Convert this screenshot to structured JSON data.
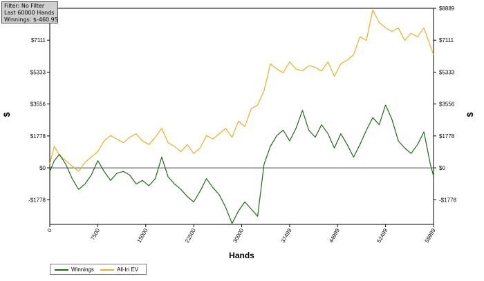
{
  "info_box": {
    "line1": "Filter: No Filter",
    "line2": "Last  60000 Hands",
    "line3": "Winnings: $-460.95"
  },
  "chart_data": {
    "type": "line",
    "xlabel": "Hands",
    "ylabel": "$",
    "xlim": [
      0,
      59999
    ],
    "ylim": [
      -3150,
      8889
    ],
    "x_ticks": [
      0,
      7500,
      15000,
      22500,
      30000,
      37499,
      44999,
      52499,
      59999
    ],
    "y_ticks": [
      -1778,
      0,
      1778,
      3556,
      5333,
      7111,
      8889
    ],
    "y_tick_labels": [
      "-$1778",
      "$0",
      "$1778",
      "$3556",
      "$5333",
      "$7111",
      "$8889"
    ],
    "grid": false,
    "zero_line": true,
    "legend_position": "bottom-left",
    "series": [
      {
        "name": "Winnings",
        "color": "#1a6b12",
        "x": [
          0,
          700,
          1500,
          2500,
          3500,
          4500,
          5500,
          6500,
          7500,
          8500,
          9500,
          10500,
          11500,
          12500,
          13500,
          14500,
          15500,
          16500,
          17500,
          18500,
          19500,
          20500,
          21500,
          22500,
          23500,
          24500,
          25500,
          26500,
          27500,
          28500,
          29500,
          30500,
          31500,
          32500,
          33500,
          34500,
          35500,
          36500,
          37500,
          38500,
          39500,
          40500,
          41500,
          42500,
          43500,
          44500,
          45500,
          46500,
          47500,
          48500,
          49500,
          50500,
          51500,
          52500,
          53500,
          54500,
          55500,
          56500,
          57500,
          58500,
          59500,
          59999
        ],
        "values": [
          -200,
          400,
          750,
          200,
          -600,
          -1200,
          -900,
          -400,
          400,
          -200,
          -700,
          -300,
          -200,
          -400,
          -900,
          -700,
          -1000,
          -600,
          600,
          -500,
          -900,
          -1200,
          -1600,
          -1900,
          -1300,
          -600,
          -1100,
          -1500,
          -2200,
          -3100,
          -2400,
          -1900,
          -2300,
          -2700,
          200,
          1200,
          1800,
          2100,
          1500,
          2200,
          3200,
          2100,
          1700,
          2400,
          1900,
          1100,
          1900,
          1300,
          600,
          1300,
          2100,
          2800,
          2400,
          3500,
          2700,
          1500,
          1100,
          800,
          1300,
          2000,
          200,
          -461
        ]
      },
      {
        "name": "All-In EV",
        "color": "#e8b020",
        "x": [
          0,
          700,
          1500,
          2500,
          3500,
          4500,
          5500,
          6500,
          7500,
          8500,
          9500,
          10500,
          11500,
          12500,
          13500,
          14500,
          15500,
          16500,
          17500,
          18500,
          19500,
          20500,
          21500,
          22500,
          23500,
          24500,
          25500,
          26500,
          27500,
          28500,
          29500,
          30500,
          31500,
          32500,
          33500,
          34500,
          35500,
          36500,
          37500,
          38500,
          39500,
          40500,
          41500,
          42500,
          43500,
          44500,
          45500,
          46500,
          47500,
          48500,
          49500,
          50500,
          51500,
          52500,
          53500,
          54500,
          55500,
          56500,
          57500,
          58500,
          59500,
          59999
        ],
        "values": [
          200,
          1200,
          700,
          400,
          100,
          -200,
          300,
          600,
          900,
          1500,
          1800,
          1600,
          1400,
          1700,
          1900,
          1500,
          1300,
          1700,
          2200,
          1400,
          1200,
          900,
          1300,
          800,
          1100,
          1800,
          1600,
          1900,
          2200,
          1700,
          2600,
          2300,
          3300,
          3500,
          4300,
          5800,
          5500,
          5300,
          5900,
          5500,
          5400,
          5700,
          5600,
          5400,
          5900,
          5100,
          5800,
          6000,
          6300,
          7300,
          7100,
          8800,
          8100,
          7800,
          7600,
          7800,
          7100,
          7500,
          7300,
          7800,
          6800,
          6300
        ]
      }
    ]
  }
}
